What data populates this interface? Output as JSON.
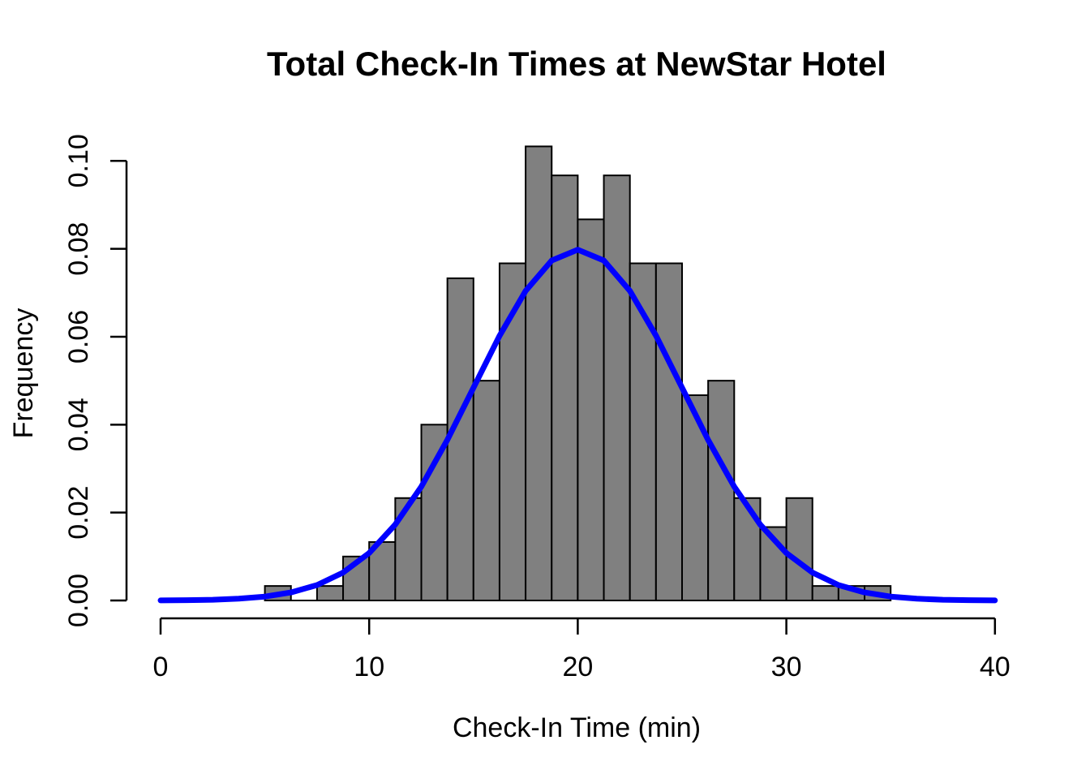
{
  "chart_data": {
    "type": "bar",
    "subtype": "histogram-with-normal-density-curve",
    "title": "Total Check-In Times at NewStar Hotel",
    "xlabel": "Check-In Time (min)",
    "ylabel": "Frequency",
    "xlim": [
      0,
      40
    ],
    "ylim": [
      0,
      0.1
    ],
    "x_ticks": [
      0,
      10,
      20,
      30,
      40
    ],
    "y_ticks": [
      0.0,
      0.02,
      0.04,
      0.06,
      0.08,
      0.1
    ],
    "y_tick_labels": [
      "0.00",
      "0.02",
      "0.04",
      "0.06",
      "0.08",
      "0.10"
    ],
    "grid": "off",
    "legend": "none",
    "bin_start": 5,
    "bin_width": 1.25,
    "bin_edges": [
      5,
      6.25,
      7.5,
      8.75,
      10,
      11.25,
      12.5,
      13.75,
      15,
      16.25,
      17.5,
      18.75,
      20,
      21.25,
      22.5,
      23.75,
      25,
      26.25,
      27.5,
      28.75,
      30,
      31.25,
      32.5,
      33.75,
      35
    ],
    "frequencies": [
      0.0033,
      0,
      0.0033,
      0.01,
      0.0133,
      0.0233,
      0.04,
      0.0733,
      0.05,
      0.0767,
      0.1033,
      0.0967,
      0.0867,
      0.0967,
      0.0767,
      0.0767,
      0.0467,
      0.05,
      0.0233,
      0.0167,
      0.0233,
      0.0033,
      0.0033,
      0.0033
    ],
    "tallest_bar": {
      "range": "17.5-18.75",
      "frequency": 0.1033
    },
    "curve": {
      "shape": "normal-density",
      "mean": 20,
      "sd": 5,
      "peak_height": 0.0798,
      "x_start": 0,
      "x_end": 40,
      "sample_step": 1.25
    },
    "colors": {
      "bar_fill": "#808080",
      "bar_stroke": "#000000",
      "curve": "#0000ff",
      "axis": "#000000",
      "background": "#ffffff",
      "text": "#000000"
    }
  }
}
